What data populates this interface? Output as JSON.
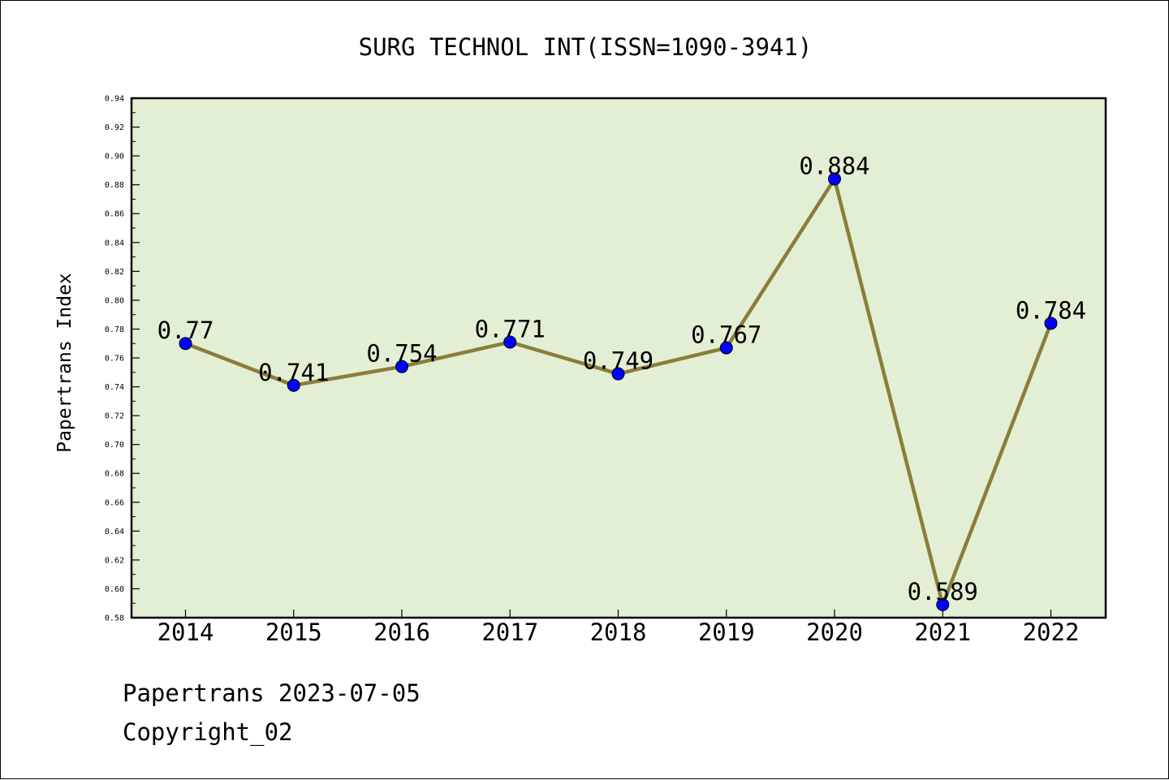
{
  "chart_data": {
    "type": "line",
    "title": "SURG TECHNOL INT(ISSN=1090-3941)",
    "xlabel": "",
    "ylabel": "Papertrans Index",
    "categories": [
      "2014",
      "2015",
      "2016",
      "2017",
      "2018",
      "2019",
      "2020",
      "2021",
      "2022"
    ],
    "series": [
      {
        "values": [
          0.77,
          0.741,
          0.754,
          0.771,
          0.749,
          0.767,
          0.884,
          0.589,
          0.784
        ],
        "labels": [
          "0.77",
          "0.741",
          "0.754",
          "0.771",
          "0.749",
          "0.767",
          "0.884",
          "0.589",
          "0.784"
        ]
      }
    ],
    "ylim": [
      0.58,
      0.94
    ],
    "yticks": [
      "0.58",
      "0.60",
      "0.62",
      "0.64",
      "0.66",
      "0.68",
      "0.70",
      "0.72",
      "0.74",
      "0.76",
      "0.78",
      "0.80",
      "0.82",
      "0.84",
      "0.86",
      "0.88",
      "0.90",
      "0.92",
      "0.94"
    ],
    "grid": false,
    "legend": "none",
    "colors": {
      "plot_background": "#e2efd4",
      "line": "#8b7d3a",
      "marker": "#0000ff"
    }
  },
  "footer": {
    "date_line": "Papertrans 2023-07-05",
    "copyright_line": "Copyright_02"
  }
}
